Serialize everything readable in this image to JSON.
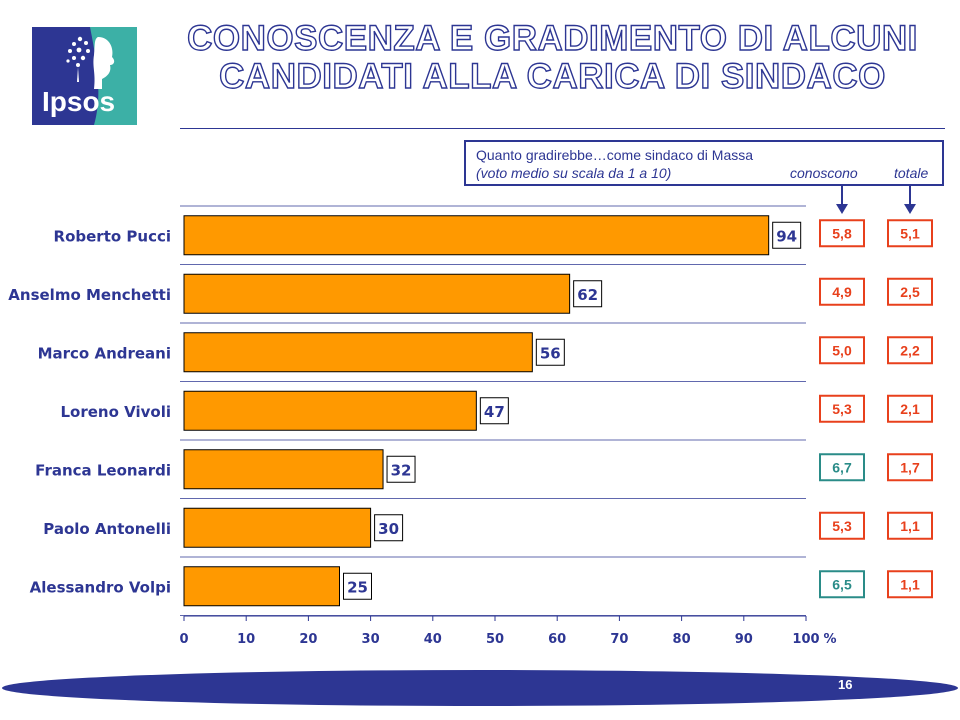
{
  "header": {
    "title_line1": "CONOSCENZA E GRADIMENTO DI ALCUNI",
    "title_line2": "CANDIDATI ALLA CARICA DI SINDACO",
    "logo_text": "Ipsos"
  },
  "legend": {
    "line1": "Quanto gradirebbe…come sindaco di Massa",
    "line2": "(voto medio su scala da 1 a 10)",
    "col_conoscono": "conoscono",
    "col_totale": "totale"
  },
  "colors": {
    "bar": "#ff9900",
    "navy": "#2d3693",
    "red": "#e8401c",
    "teal": "#2a8c88",
    "logo_blue": "#2d3693",
    "logo_teal": "#3cb0a6"
  },
  "chart_data": {
    "type": "bar",
    "orientation": "horizontal",
    "categories": [
      "Roberto Pucci",
      "Anselmo Menchetti",
      "Marco Andreani",
      "Loreno Vivoli",
      "Franca Leonardi",
      "Paolo Antonelli",
      "Alessandro Volpi"
    ],
    "values": [
      94,
      62,
      56,
      47,
      32,
      30,
      25
    ],
    "xlim": [
      0,
      100
    ],
    "xticks": [
      "0",
      "10",
      "20",
      "30",
      "40",
      "50",
      "60",
      "70",
      "80",
      "90",
      "100"
    ],
    "x_unit": "%",
    "grid": "horizontal separators",
    "side_columns": [
      {
        "name": "conoscono",
        "values": [
          "5,8",
          "4,9",
          "5,0",
          "5,3",
          "6,7",
          "5,3",
          "6,5"
        ],
        "styles": [
          "red",
          "red",
          "red",
          "red",
          "teal",
          "red",
          "teal"
        ]
      },
      {
        "name": "totale",
        "values": [
          "5,1",
          "2,5",
          "2,2",
          "2,1",
          "1,7",
          "1,1",
          "1,1"
        ],
        "styles": [
          "red",
          "red",
          "red",
          "red",
          "red",
          "red",
          "red"
        ]
      }
    ]
  },
  "footer": {
    "page_number": "16"
  }
}
